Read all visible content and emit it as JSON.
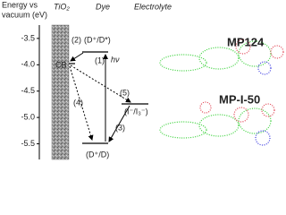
{
  "axis": {
    "title_lines": [
      "Energy vs",
      "vacuum (eV)"
    ],
    "ylim": [
      -3.23,
      -5.78
    ],
    "yticks": [
      -3.5,
      {
        "value": -4.0,
        "label": "-4.0"
      },
      -4.5,
      {
        "value": -5.0,
        "label": "-5.0"
      },
      -5.5
    ]
  },
  "headers": {
    "tio2": "TiO₂",
    "dye": "Dye",
    "electrolyte": "Electrolyte"
  },
  "levels": {
    "excited": "(D⁺/D*)",
    "cb": "CB",
    "redox": "(I⁻/I₃⁻)",
    "ground": "(D⁺/D)"
  },
  "processes": {
    "p1": "(1)",
    "hv": "hν",
    "p2": "(2)",
    "p3": "(3)",
    "p4": "(4)",
    "p5": "(5)"
  },
  "molecules": [
    "MP124",
    "MP-I-50"
  ]
}
